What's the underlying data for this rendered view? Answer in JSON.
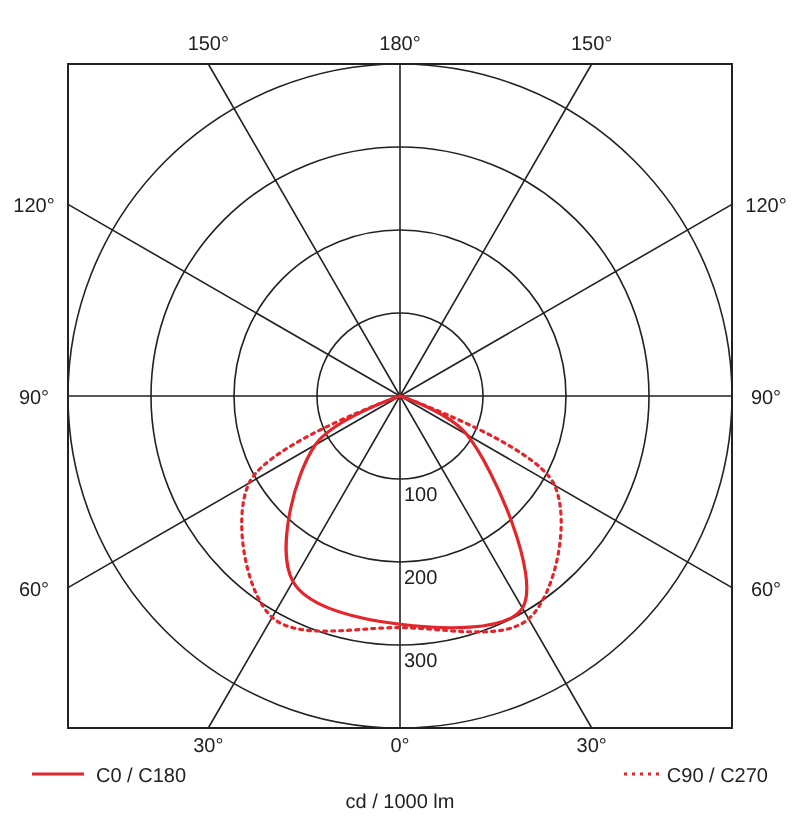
{
  "chart_data": {
    "type": "radar",
    "ylabel": "cd / 1000 lm",
    "categories": [
      "180°",
      "150°",
      "120°",
      "90°",
      "60°",
      "30°",
      "0°",
      "30°",
      "60°",
      "90°",
      "120°",
      "150°"
    ],
    "series": [
      {
        "name": "C0 / C180",
        "color": "#e3262b",
        "line_style": "solid",
        "values": [
          0,
          0,
          0,
          0,
          93,
          295,
          275,
          258,
          118,
          0,
          0,
          0
        ]
      },
      {
        "name": "C90 / C270",
        "color": "#e3262b",
        "line_style": "dotted",
        "values": [
          0,
          0,
          0,
          0,
          215,
          310,
          279,
          308,
          210,
          0,
          0,
          0
        ]
      }
    ],
    "ylim": [
      0,
      400
    ],
    "yticks": [
      100,
      200,
      300
    ],
    "grid": true,
    "legend": "bottom"
  }
}
